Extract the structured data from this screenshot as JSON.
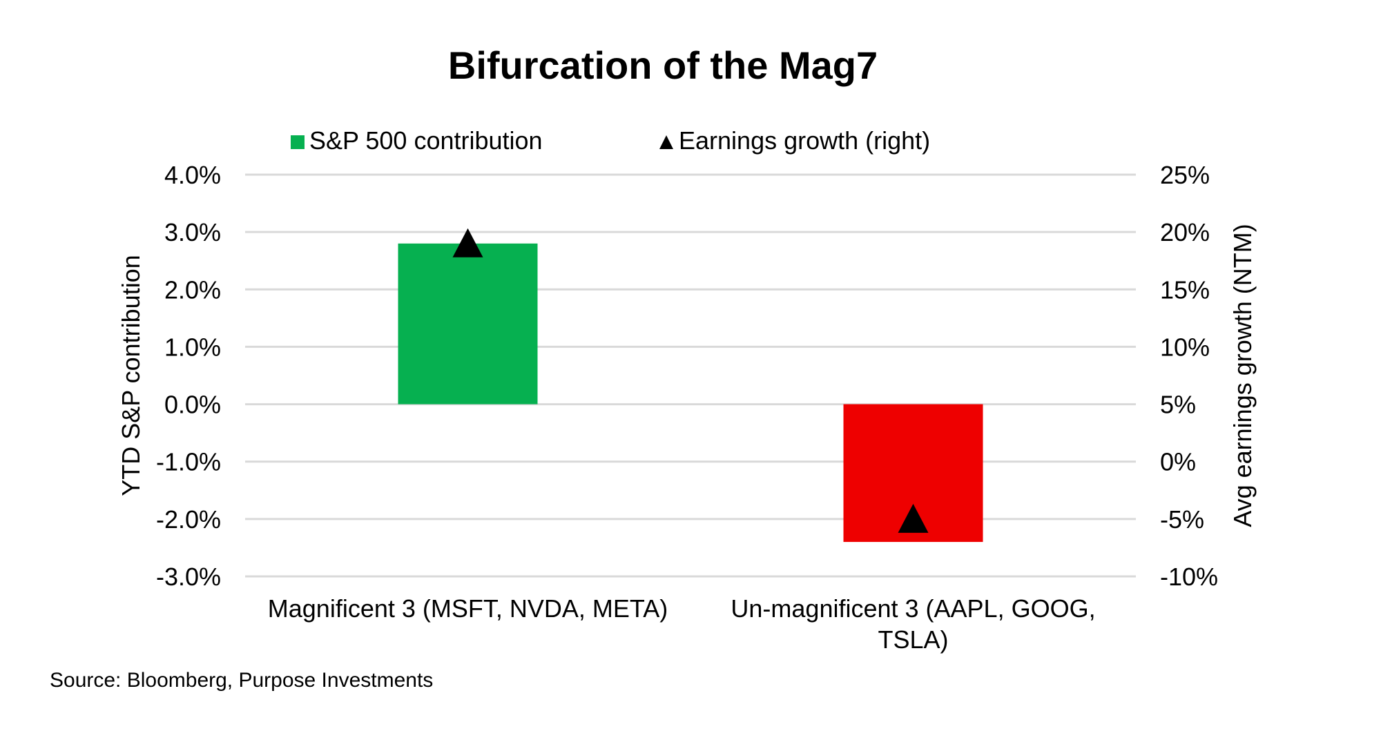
{
  "chart_data": {
    "type": "bar",
    "title": "Bifurcation of the Mag7",
    "categories": [
      "Magnificent 3 (MSFT, NVDA, META)",
      "Un-magnificent 3 (AAPL, GOOG, TSLA)"
    ],
    "category_label_lines": [
      [
        "Magnificent 3 (MSFT, NVDA, META)"
      ],
      [
        "Un-magnificent 3 (AAPL, GOOG,",
        "TSLA)"
      ]
    ],
    "series": [
      {
        "name": "S&P 500 contribution",
        "type": "bar",
        "axis": "left",
        "values": [
          2.8,
          -2.4
        ],
        "colors": [
          "#06b050",
          "#ee0000"
        ]
      },
      {
        "name": "Earnings growth (right)",
        "type": "marker",
        "marker": "triangle",
        "axis": "right",
        "values": [
          19,
          -5
        ],
        "color": "#000000"
      }
    ],
    "ylabel": "YTD S&P contribution",
    "ylabel_right": "Avg earnings growth (NTM)",
    "ylim": [
      -3,
      4
    ],
    "yticks": [
      "4.0%",
      "3.0%",
      "2.0%",
      "1.0%",
      "0.0%",
      "-1.0%",
      "-2.0%",
      "-3.0%"
    ],
    "ylim_right": [
      -10,
      25
    ],
    "yticks_right": [
      "25%",
      "20%",
      "15%",
      "10%",
      "5%",
      "0%",
      "-5%",
      "-10%"
    ],
    "grid": true,
    "legend_position": "top",
    "source": "Source: Bloomberg, Purpose Investments"
  }
}
